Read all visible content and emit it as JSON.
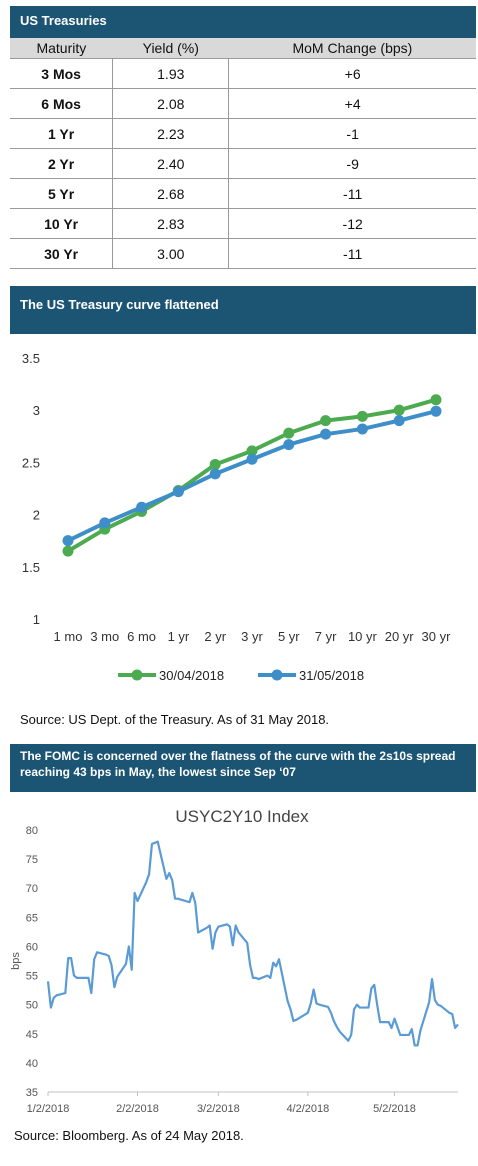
{
  "treasuries": {
    "title": "US Treasuries",
    "columns": [
      "Maturity",
      "Yield (%)",
      "MoM  Change (bps)"
    ],
    "rows": [
      [
        "3 Mos",
        "1.93",
        "+6"
      ],
      [
        "6 Mos",
        "2.08",
        "+4"
      ],
      [
        "1 Yr",
        "2.23",
        "-1"
      ],
      [
        "2 Yr",
        "2.40",
        "-9"
      ],
      [
        "5 Yr",
        "2.68",
        "-11"
      ],
      [
        "10 Yr",
        "2.83",
        "-12"
      ],
      [
        "30 Yr",
        "3.00",
        "-11"
      ]
    ]
  },
  "curve_title": "The US Treasury curve flattened",
  "curve_source": "Source: US Dept. of the Treasury. As of 31 May 2018.",
  "spread_title": "The FOMC is concerned over the flatness of the curve with the 2s10s spread reaching 43 bps in May, the lowest since Sep ‘07",
  "spread_source": "Source: Bloomberg. As of 24 May 2018.",
  "colors": {
    "header": "#1c5473",
    "green": "#4caa50",
    "blue": "#3d8ec9",
    "index_line": "#5b9bd5"
  },
  "chart_data": [
    {
      "type": "line",
      "title": "",
      "categories": [
        "1 mo",
        "3 mo",
        "6 mo",
        "1 yr",
        "2 yr",
        "3 yr",
        "5 yr",
        "7 yr",
        "10 yr",
        "20 yr",
        "30 yr"
      ],
      "series": [
        {
          "name": "30/04/2018",
          "color": "#4caa50",
          "values": [
            1.66,
            1.87,
            2.04,
            2.24,
            2.49,
            2.62,
            2.79,
            2.91,
            2.95,
            3.01,
            3.11
          ]
        },
        {
          "name": "31/05/2018",
          "color": "#3d8ec9",
          "values": [
            1.76,
            1.93,
            2.08,
            2.23,
            2.4,
            2.54,
            2.68,
            2.78,
            2.83,
            2.91,
            3.0
          ]
        }
      ],
      "yticks": [
        "1",
        "1.5",
        "2",
        "2.5",
        "3",
        "3.5"
      ],
      "ylim": [
        1,
        3.5
      ],
      "legend": "bottom"
    },
    {
      "type": "line",
      "title": "USYC2Y10 Index",
      "ylabel": "bps",
      "ylim": [
        35,
        80
      ],
      "yticks": [
        "35",
        "40",
        "45",
        "50",
        "55",
        "60",
        "65",
        "70",
        "75",
        "80"
      ],
      "xticks": [
        "1/2/2018",
        "2/2/2018",
        "3/2/2018",
        "4/2/2018",
        "5/2/2018"
      ],
      "xlim": [
        "2018-01-02",
        "2018-05-24"
      ],
      "series": [
        {
          "x": [
            "2018-01-02",
            "2018-01-03",
            "2018-01-04",
            "2018-01-05",
            "2018-01-08",
            "2018-01-09",
            "2018-01-10",
            "2018-01-11",
            "2018-01-12",
            "2018-01-16",
            "2018-01-17",
            "2018-01-18",
            "2018-01-19",
            "2018-01-22",
            "2018-01-23",
            "2018-01-24",
            "2018-01-25",
            "2018-01-26",
            "2018-01-29",
            "2018-01-30",
            "2018-01-31",
            "2018-02-01",
            "2018-02-02",
            "2018-02-05",
            "2018-02-06",
            "2018-02-07",
            "2018-02-08",
            "2018-02-09",
            "2018-02-12",
            "2018-02-13",
            "2018-02-14",
            "2018-02-15",
            "2018-02-16",
            "2018-02-20",
            "2018-02-21",
            "2018-02-22",
            "2018-02-23",
            "2018-02-26",
            "2018-02-27",
            "2018-02-28",
            "2018-03-01",
            "2018-03-02",
            "2018-03-05",
            "2018-03-06",
            "2018-03-07",
            "2018-03-08",
            "2018-03-09",
            "2018-03-12",
            "2018-03-13",
            "2018-03-14",
            "2018-03-15",
            "2018-03-16",
            "2018-03-19",
            "2018-03-20",
            "2018-03-21",
            "2018-03-22",
            "2018-03-23",
            "2018-03-26",
            "2018-03-27",
            "2018-03-28",
            "2018-03-29",
            "2018-04-02",
            "2018-04-03",
            "2018-04-04",
            "2018-04-05",
            "2018-04-06",
            "2018-04-09",
            "2018-04-10",
            "2018-04-11",
            "2018-04-12",
            "2018-04-13",
            "2018-04-16",
            "2018-04-17",
            "2018-04-18",
            "2018-04-19",
            "2018-04-20",
            "2018-04-23",
            "2018-04-24",
            "2018-04-25",
            "2018-04-26",
            "2018-04-27",
            "2018-04-30",
            "2018-05-01",
            "2018-05-02",
            "2018-05-03",
            "2018-05-04",
            "2018-05-07",
            "2018-05-08",
            "2018-05-09",
            "2018-05-10",
            "2018-05-11",
            "2018-05-14",
            "2018-05-15",
            "2018-05-16",
            "2018-05-17",
            "2018-05-18",
            "2018-05-21",
            "2018-05-22",
            "2018-05-23",
            "2018-05-24"
          ],
          "values": [
            54,
            49.5,
            51.2,
            51.6,
            52,
            58,
            58,
            55,
            54.6,
            54.6,
            52,
            57.8,
            59,
            58.6,
            58.4,
            56.8,
            53,
            54.8,
            57,
            60,
            56,
            69.2,
            67.8,
            71,
            72.4,
            77.6,
            77.8,
            78,
            71.6,
            72.6,
            71.4,
            68.2,
            68.2,
            67.6,
            69.2,
            67.5,
            62.4,
            63.2,
            63.6,
            59.6,
            62.4,
            63.4,
            63.8,
            63.4,
            60.2,
            63.6,
            62.4,
            60.6,
            56.8,
            54.6,
            54.6,
            54.4,
            55,
            54.6,
            57.2,
            56.6,
            57.8,
            50.6,
            49.2,
            47.2,
            47.4,
            48.6,
            50.2,
            52.6,
            50.2,
            50,
            49.6,
            48.6,
            47.2,
            46.2,
            45.4,
            43.8,
            44.8,
            49.2,
            50,
            49.5,
            49.5,
            52.8,
            53.4,
            50,
            47,
            47,
            46,
            47.6,
            46.2,
            44.8,
            44.8,
            45.8,
            43,
            43,
            45.6,
            50.4,
            54.4,
            50.8,
            50,
            49.8,
            48.6,
            48.4,
            46,
            46.6
          ]
        }
      ]
    }
  ]
}
